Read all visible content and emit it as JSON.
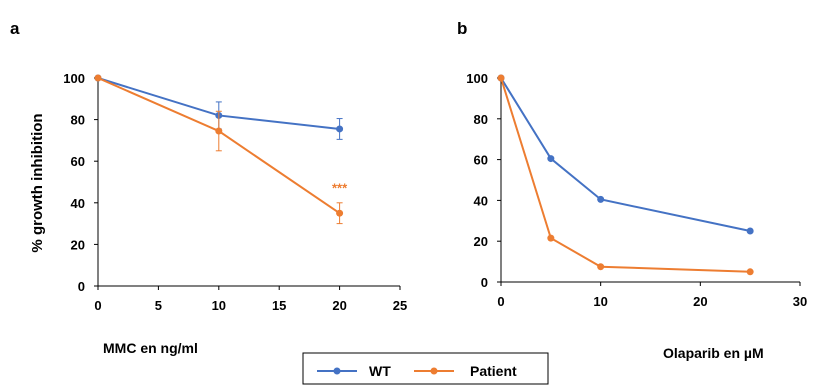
{
  "colors": {
    "wt": "#4472C4",
    "patient": "#ED7D31",
    "axis": "#000000"
  },
  "legend": {
    "placement": "bottom-center",
    "entries": [
      "WT",
      "Patient"
    ]
  },
  "chart_data": [
    {
      "panel": "a",
      "type": "line",
      "xlabel": "MMC en ng/ml",
      "ylabel": "% growth inhibition",
      "xlim": [
        0,
        25
      ],
      "ylim": [
        0,
        100
      ],
      "xticks": [
        0,
        5,
        10,
        15,
        20,
        25
      ],
      "yticks": [
        0,
        20,
        40,
        60,
        80,
        100
      ],
      "grid": false,
      "series": [
        {
          "name": "WT",
          "color": "#4472C4",
          "x": [
            0,
            10,
            20
          ],
          "y": [
            100,
            82,
            75.5
          ],
          "err": [
            0,
            6.5,
            5
          ]
        },
        {
          "name": "Patient",
          "color": "#ED7D31",
          "x": [
            0,
            10,
            20
          ],
          "y": [
            100,
            74.5,
            35
          ],
          "err": [
            0,
            9.5,
            5
          ]
        }
      ],
      "annotations": [
        {
          "text": "***",
          "x": 20,
          "y": 45,
          "color": "#ED7D31"
        }
      ]
    },
    {
      "panel": "b",
      "type": "line",
      "xlabel": "Olaparib en µM",
      "ylabel": "",
      "xlim": [
        0,
        30
      ],
      "ylim": [
        0,
        100
      ],
      "xticks": [
        0,
        10,
        20,
        30
      ],
      "yticks": [
        0,
        20,
        40,
        60,
        80,
        100
      ],
      "grid": false,
      "series": [
        {
          "name": "WT",
          "color": "#4472C4",
          "x": [
            0,
            5,
            10,
            25
          ],
          "y": [
            100,
            60.5,
            40.5,
            25
          ]
        },
        {
          "name": "Patient",
          "color": "#ED7D31",
          "x": [
            0,
            5,
            10,
            25
          ],
          "y": [
            100,
            21.5,
            7.5,
            5
          ]
        }
      ],
      "annotations": []
    }
  ]
}
